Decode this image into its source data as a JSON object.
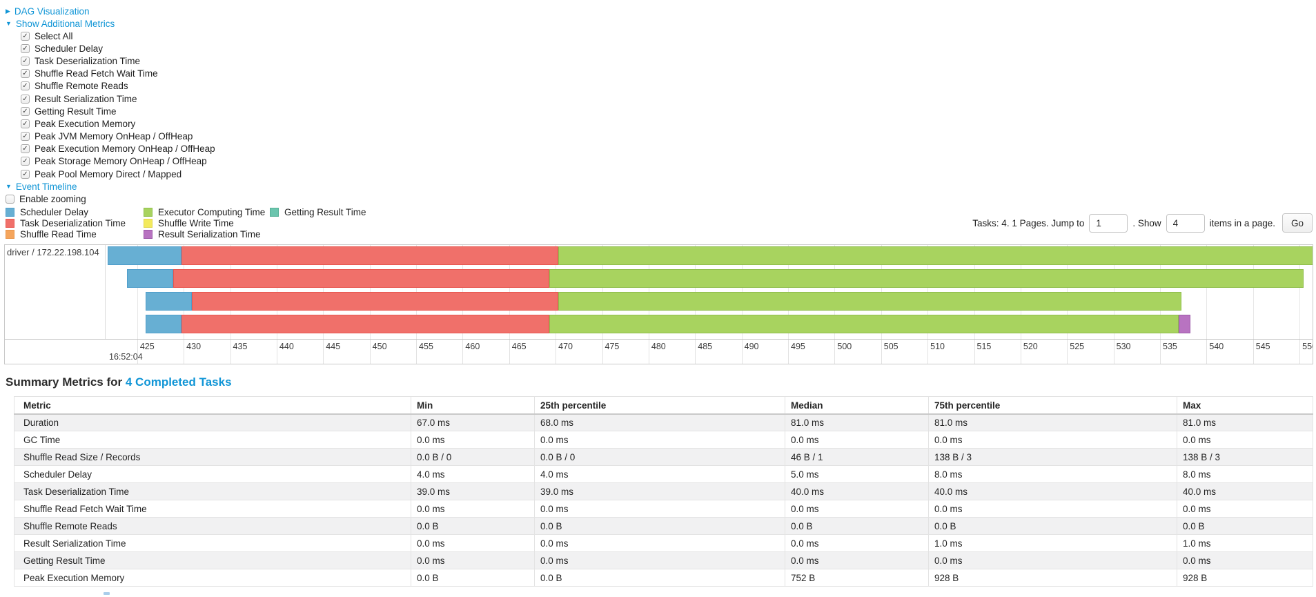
{
  "controls": {
    "dag_link": "DAG Visualization",
    "metrics_link": "Show Additional Metrics",
    "checkboxes": [
      "Select All",
      "Scheduler Delay",
      "Task Deserialization Time",
      "Shuffle Read Fetch Wait Time",
      "Shuffle Remote Reads",
      "Result Serialization Time",
      "Getting Result Time",
      "Peak Execution Memory",
      "Peak JVM Memory OnHeap / OffHeap",
      "Peak Execution Memory OnHeap / OffHeap",
      "Peak Storage Memory OnHeap / OffHeap",
      "Peak Pool Memory Direct / Mapped"
    ],
    "timeline_link": "Event Timeline",
    "enable_zooming_label": "Enable zooming"
  },
  "legend": [
    {
      "label": "Scheduler Delay",
      "color": "#67AFD3",
      "border": "#4F9ECB"
    },
    {
      "label": "Task Deserialization Time",
      "color": "#F0706A",
      "border": "#E8564F"
    },
    {
      "label": "Shuffle Read Time",
      "color": "#F5A55C",
      "border": "#E8954A"
    },
    {
      "label": "Executor Computing Time",
      "color": "#A8D35F",
      "border": "#8FBE4C"
    },
    {
      "label": "Shuffle Write Time",
      "color": "#F3EA5D",
      "border": "#DFD64E"
    },
    {
      "label": "Result Serialization Time",
      "color": "#B873C1",
      "border": "#9C59A8"
    },
    {
      "label": "Getting Result Time",
      "color": "#6BC5AE",
      "border": "#54B096"
    }
  ],
  "pagination": {
    "tasks_label": "Tasks: 4. 1 Pages. Jump to",
    "jump_value": "1",
    "show_label": ". Show",
    "show_value": "4",
    "items_label": "items in a page.",
    "go_label": "Go"
  },
  "chart_data": {
    "type": "timeline-gantt",
    "group_label": "driver / 172.22.198.104",
    "axis": {
      "min": 421.6,
      "max": 551.4,
      "tick_start": 425,
      "tick_step": 5,
      "tick_end": 550,
      "unit": "ms within second",
      "base_time_label": "16:52:04"
    },
    "colors": {
      "scheduler_delay": {
        "fill": "#67AFD3",
        "border": "#4F9ECB"
      },
      "task_deserialization": {
        "fill": "#F0706A",
        "border": "#E8564F"
      },
      "executor_computing": {
        "fill": "#A8D35F",
        "border": "#8FBE4C"
      },
      "result_serialization": {
        "fill": "#B873C1",
        "border": "#9C59A8"
      }
    },
    "tasks": [
      {
        "segments": [
          {
            "kind": "scheduler_delay",
            "start": 421.8,
            "end": 429.8
          },
          {
            "kind": "task_deserialization",
            "start": 429.8,
            "end": 470.3
          },
          {
            "kind": "executor_computing",
            "start": 470.3,
            "end": 551.5
          }
        ]
      },
      {
        "segments": [
          {
            "kind": "scheduler_delay",
            "start": 423.9,
            "end": 428.9
          },
          {
            "kind": "task_deserialization",
            "start": 428.9,
            "end": 469.3
          },
          {
            "kind": "executor_computing",
            "start": 469.3,
            "end": 550.4
          }
        ]
      },
      {
        "segments": [
          {
            "kind": "scheduler_delay",
            "start": 425.9,
            "end": 430.9
          },
          {
            "kind": "task_deserialization",
            "start": 430.9,
            "end": 470.3
          },
          {
            "kind": "executor_computing",
            "start": 470.3,
            "end": 537.3
          }
        ]
      },
      {
        "segments": [
          {
            "kind": "scheduler_delay",
            "start": 425.9,
            "end": 429.8
          },
          {
            "kind": "task_deserialization",
            "start": 429.8,
            "end": 469.3
          },
          {
            "kind": "executor_computing",
            "start": 469.3,
            "end": 537.0
          },
          {
            "kind": "result_serialization",
            "start": 537.0,
            "end": 538.3
          }
        ]
      }
    ]
  },
  "summary": {
    "title": "Summary Metrics for",
    "title_link": "4 Completed Tasks",
    "headers": [
      "Metric",
      "Min",
      "25th percentile",
      "Median",
      "75th percentile",
      "Max"
    ],
    "rows": [
      {
        "metric": "Duration",
        "values": [
          "67.0 ms",
          "68.0 ms",
          "81.0 ms",
          "81.0 ms",
          "81.0 ms"
        ]
      },
      {
        "metric": "GC Time",
        "values": [
          "0.0 ms",
          "0.0 ms",
          "0.0 ms",
          "0.0 ms",
          "0.0 ms"
        ]
      },
      {
        "metric": "Shuffle Read Size / Records",
        "values": [
          "0.0 B / 0",
          "0.0 B / 0",
          "46 B / 1",
          "138 B / 3",
          "138 B / 3"
        ]
      },
      {
        "metric": "Scheduler Delay",
        "values": [
          "4.0 ms",
          "4.0 ms",
          "5.0 ms",
          "8.0 ms",
          "8.0 ms"
        ]
      },
      {
        "metric": "Task Deserialization Time",
        "values": [
          "39.0 ms",
          "39.0 ms",
          "40.0 ms",
          "40.0 ms",
          "40.0 ms"
        ]
      },
      {
        "metric": "Shuffle Read Fetch Wait Time",
        "values": [
          "0.0 ms",
          "0.0 ms",
          "0.0 ms",
          "0.0 ms",
          "0.0 ms"
        ]
      },
      {
        "metric": "Shuffle Remote Reads",
        "values": [
          "0.0 B",
          "0.0 B",
          "0.0 B",
          "0.0 B",
          "0.0 B"
        ]
      },
      {
        "metric": "Result Serialization Time",
        "values": [
          "0.0 ms",
          "0.0 ms",
          "0.0 ms",
          "1.0 ms",
          "1.0 ms"
        ]
      },
      {
        "metric": "Getting Result Time",
        "values": [
          "0.0 ms",
          "0.0 ms",
          "0.0 ms",
          "0.0 ms",
          "0.0 ms"
        ]
      },
      {
        "metric": "Peak Execution Memory",
        "values": [
          "0.0 B",
          "0.0 B",
          "752 B",
          "928 B",
          "928 B"
        ]
      }
    ]
  }
}
